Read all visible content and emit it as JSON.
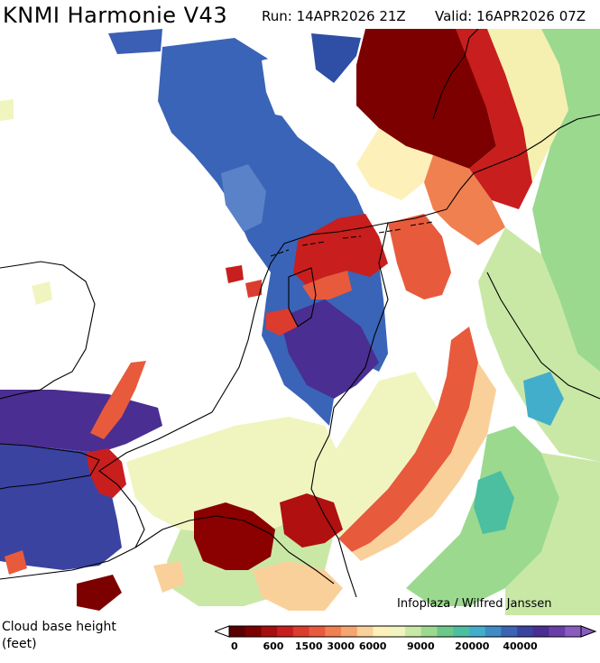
{
  "header": {
    "title": "KNMI Harmonie V43",
    "run": "Run: 14APR2026 21Z",
    "valid": "Valid: 16APR2026 07Z"
  },
  "credit": "Infoplaza / Wilfred Janssen",
  "legend": {
    "title_line1": "Cloud base height",
    "title_line2": "(feet)",
    "colors": [
      "#5a0000",
      "#7d0000",
      "#a50f0f",
      "#c81e1e",
      "#dc3c2d",
      "#e85a3c",
      "#f08050",
      "#f5a570",
      "#fad09a",
      "#fdf0b8",
      "#f0f5c0",
      "#c9e8a6",
      "#9bd98f",
      "#6cc88a",
      "#4bbfa0",
      "#43aecb",
      "#3f8cc6",
      "#3c64b4",
      "#3a43a0",
      "#4b2e91",
      "#6a3ea8",
      "#8a5cc0"
    ],
    "labels": [
      "0",
      "600",
      "1500",
      "3000",
      "6000",
      "9000",
      "20000",
      "40000"
    ]
  }
}
